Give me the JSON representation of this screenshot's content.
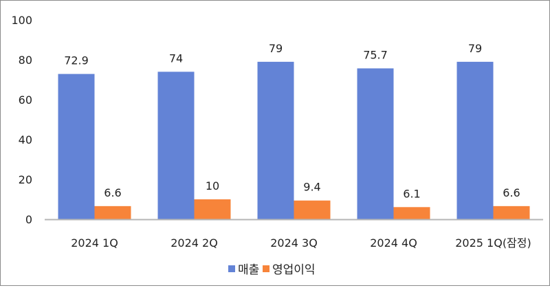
{
  "chart_data": {
    "type": "bar",
    "title": "",
    "xlabel": "",
    "ylabel": "",
    "categories": [
      "2024 1Q",
      "2024 2Q",
      "2024 3Q",
      "2024 4Q",
      "2025 1Q(잠정)"
    ],
    "series": [
      {
        "name": "매출",
        "color": "#6383D6",
        "values": [
          72.9,
          74,
          79,
          75.7,
          79
        ]
      },
      {
        "name": "영업이익",
        "color": "#F7843A",
        "values": [
          6.6,
          10,
          9.4,
          6.1,
          6.6
        ]
      }
    ],
    "ylim": [
      0,
      100
    ],
    "yticks": [
      0,
      20,
      40,
      60,
      80,
      100
    ],
    "grid": false,
    "legend": "bottom",
    "data_labels": true
  }
}
